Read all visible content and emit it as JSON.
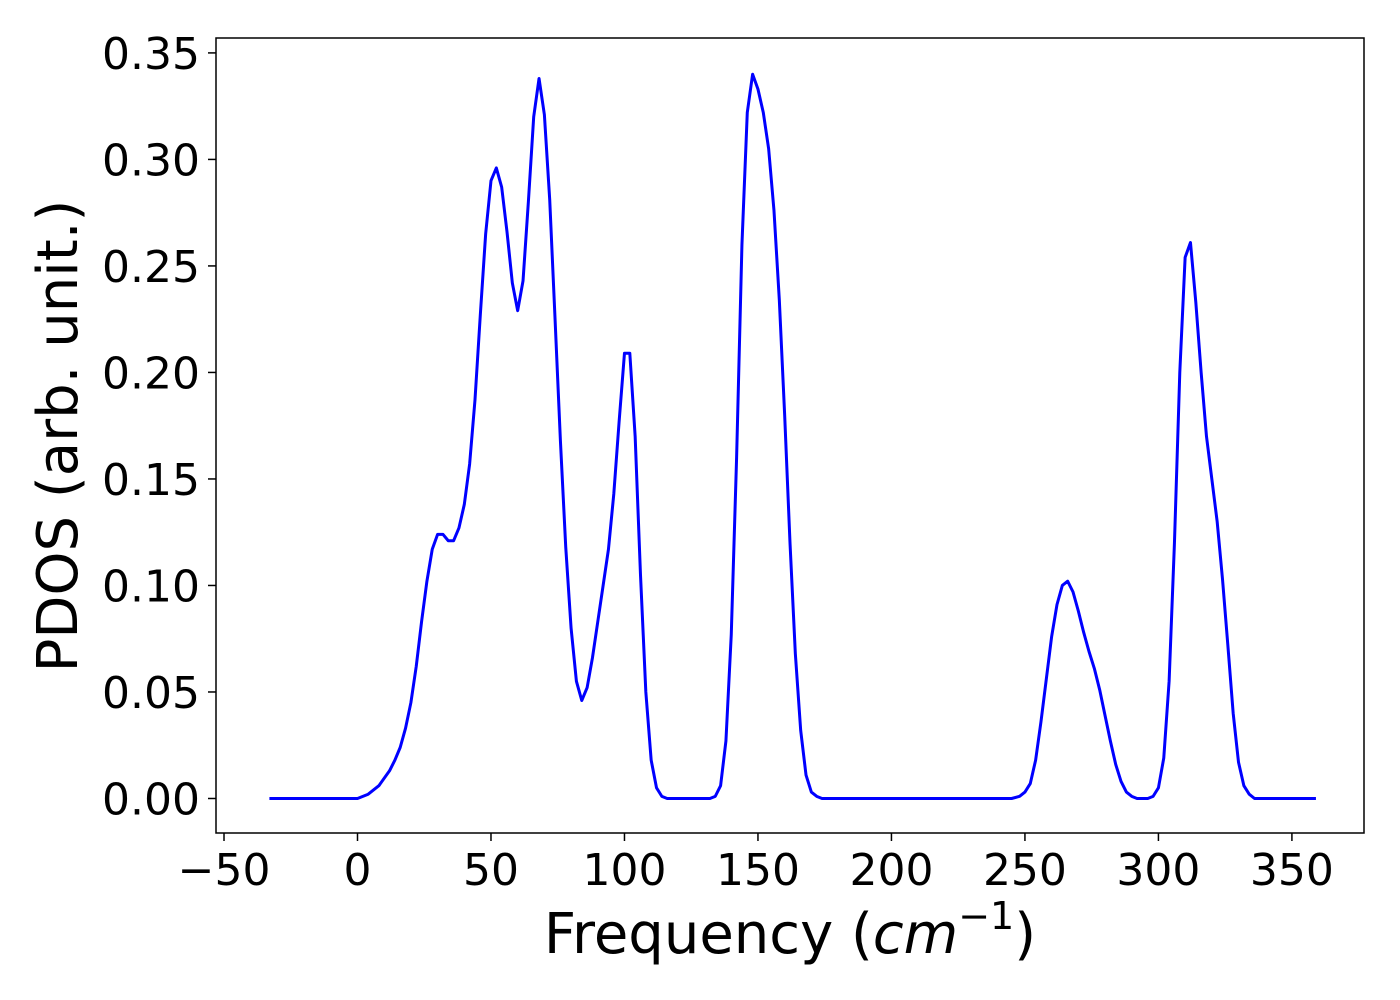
{
  "chart_data": {
    "type": "line",
    "title": "",
    "xlabel": "Frequency",
    "xlabel_unit_base": "cm",
    "xlabel_unit_exp": "−1",
    "ylabel": "PDOS (arb. unit.)",
    "xlim": [
      -53,
      377
    ],
    "ylim": [
      -0.0162,
      0.357
    ],
    "xticks": [
      -50,
      0,
      50,
      100,
      150,
      200,
      250,
      300,
      350
    ],
    "xtick_labels": [
      "−50",
      "0",
      "50",
      "100",
      "150",
      "200",
      "250",
      "300",
      "350"
    ],
    "yticks": [
      0.0,
      0.05,
      0.1,
      0.15,
      0.2,
      0.25,
      0.3,
      0.35
    ],
    "ytick_labels": [
      "0.00",
      "0.05",
      "0.10",
      "0.15",
      "0.20",
      "0.25",
      "0.30",
      "0.35"
    ],
    "grid": false,
    "line_color": "#0000ff",
    "series": [
      {
        "x": [
          -33,
          0,
          4,
          8,
          12,
          14,
          16,
          18,
          20,
          22,
          24,
          26,
          28,
          30,
          32,
          34,
          36,
          38,
          40,
          42,
          44,
          46,
          48,
          50,
          52,
          54,
          56,
          58,
          60,
          62,
          64,
          66,
          68,
          70,
          72,
          74,
          76,
          78,
          80,
          82,
          84,
          86,
          88,
          90,
          92,
          94,
          96,
          98,
          100,
          102,
          104,
          106,
          108,
          110,
          112,
          114,
          116,
          118,
          120,
          124,
          128,
          132,
          134,
          136,
          138,
          140,
          142,
          144,
          146,
          148,
          150,
          152,
          154,
          156,
          158,
          160,
          162,
          164,
          166,
          168,
          170,
          172,
          174,
          176,
          200,
          230,
          245,
          248,
          250,
          252,
          254,
          256,
          258,
          260,
          262,
          264,
          266,
          268,
          270,
          272,
          274,
          276,
          278,
          280,
          282,
          284,
          286,
          288,
          290,
          292,
          294,
          296,
          298,
          300,
          302,
          304,
          306,
          308,
          310,
          312,
          314,
          316,
          318,
          320,
          322,
          324,
          326,
          328,
          330,
          332,
          334,
          336,
          340,
          359
        ],
        "y": [
          0.0,
          0.0,
          0.002,
          0.006,
          0.013,
          0.018,
          0.024,
          0.033,
          0.045,
          0.062,
          0.083,
          0.102,
          0.117,
          0.124,
          0.124,
          0.121,
          0.121,
          0.127,
          0.138,
          0.157,
          0.187,
          0.227,
          0.265,
          0.29,
          0.296,
          0.287,
          0.266,
          0.242,
          0.229,
          0.243,
          0.28,
          0.32,
          0.338,
          0.321,
          0.281,
          0.225,
          0.168,
          0.118,
          0.08,
          0.055,
          0.046,
          0.052,
          0.066,
          0.083,
          0.1,
          0.117,
          0.143,
          0.177,
          0.209,
          0.209,
          0.17,
          0.105,
          0.05,
          0.018,
          0.005,
          0.001,
          0.0,
          0.0,
          0.0,
          0.0,
          0.0,
          0.0,
          0.001,
          0.006,
          0.027,
          0.077,
          0.16,
          0.26,
          0.322,
          0.34,
          0.333,
          0.322,
          0.305,
          0.276,
          0.234,
          0.18,
          0.12,
          0.068,
          0.032,
          0.011,
          0.003,
          0.001,
          0.0,
          0.0,
          0.0,
          0.0,
          0.0,
          0.001,
          0.003,
          0.007,
          0.018,
          0.036,
          0.056,
          0.076,
          0.091,
          0.1,
          0.102,
          0.097,
          0.088,
          0.078,
          0.069,
          0.061,
          0.051,
          0.039,
          0.027,
          0.016,
          0.008,
          0.003,
          0.001,
          0.0,
          0.0,
          0.0,
          0.001,
          0.005,
          0.019,
          0.055,
          0.12,
          0.2,
          0.254,
          0.261,
          0.233,
          0.2,
          0.17,
          0.15,
          0.13,
          0.103,
          0.072,
          0.04,
          0.017,
          0.006,
          0.002,
          0.0,
          0.0,
          0.0
        ]
      }
    ]
  }
}
